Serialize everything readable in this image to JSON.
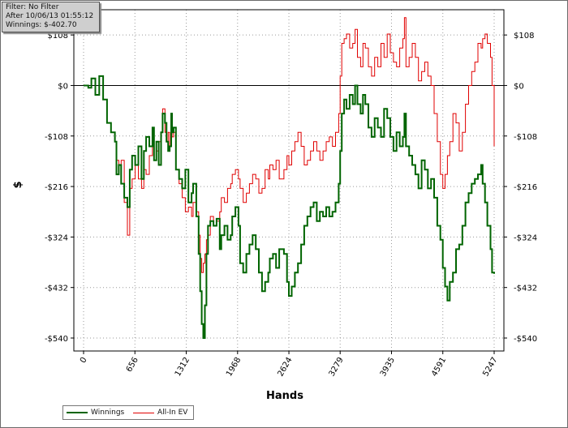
{
  "info": {
    "filter": "Filter: No Filter",
    "after": "After 10/06/13 01:55:12",
    "winnings": "Winnings: $-402.70"
  },
  "colors": {
    "winnings": "#006400",
    "all_in_ev": "#e00000",
    "grid": "#9a9a9a",
    "axis": "#000000"
  },
  "chart_data": {
    "type": "line",
    "title": "",
    "xlabel": "Hands",
    "ylabel": "$",
    "xlim": [
      0,
      5247
    ],
    "ylim": [
      -540,
      162
    ],
    "x_ticks": [
      0,
      656,
      1312,
      1968,
      2624,
      3279,
      3935,
      4591,
      5247
    ],
    "x_tick_labels": [
      "0",
      "656",
      "1312",
      "1968",
      "2624",
      "3279",
      "3935",
      "4591",
      "5247"
    ],
    "y_ticks": [
      108,
      0,
      -108,
      -216,
      -324,
      -432,
      -540
    ],
    "y_tick_labels": [
      "$108",
      "$0",
      "-$108",
      "-$216",
      "-$324",
      "-$432",
      "-$540"
    ],
    "grid": true,
    "legend_position": "bottom-left",
    "zero_line": true,
    "series": [
      {
        "name": "Winnings",
        "color": "#006400",
        "points": [
          [
            0,
            0
          ],
          [
            60,
            -5
          ],
          [
            100,
            15
          ],
          [
            150,
            -20
          ],
          [
            200,
            20
          ],
          [
            250,
            -30
          ],
          [
            300,
            -80
          ],
          [
            350,
            -100
          ],
          [
            400,
            -120
          ],
          [
            420,
            -190
          ],
          [
            450,
            -170
          ],
          [
            480,
            -210
          ],
          [
            520,
            -240
          ],
          [
            560,
            -260
          ],
          [
            590,
            -180
          ],
          [
            620,
            -150
          ],
          [
            660,
            -170
          ],
          [
            700,
            -130
          ],
          [
            740,
            -200
          ],
          [
            770,
            -140
          ],
          [
            800,
            -110
          ],
          [
            840,
            -130
          ],
          [
            880,
            -90
          ],
          [
            900,
            -160
          ],
          [
            930,
            -120
          ],
          [
            960,
            -170
          ],
          [
            990,
            -100
          ],
          [
            1010,
            -60
          ],
          [
            1040,
            -80
          ],
          [
            1060,
            -120
          ],
          [
            1080,
            -140
          ],
          [
            1100,
            -130
          ],
          [
            1120,
            -60
          ],
          [
            1130,
            -100
          ],
          [
            1150,
            -90
          ],
          [
            1180,
            -180
          ],
          [
            1220,
            -200
          ],
          [
            1260,
            -220
          ],
          [
            1300,
            -180
          ],
          [
            1340,
            -250
          ],
          [
            1380,
            -230
          ],
          [
            1400,
            -210
          ],
          [
            1440,
            -280
          ],
          [
            1470,
            -360
          ],
          [
            1490,
            -440
          ],
          [
            1510,
            -510
          ],
          [
            1530,
            -540
          ],
          [
            1550,
            -470
          ],
          [
            1570,
            -360
          ],
          [
            1590,
            -300
          ],
          [
            1620,
            -290
          ],
          [
            1660,
            -300
          ],
          [
            1700,
            -285
          ],
          [
            1740,
            -350
          ],
          [
            1760,
            -320
          ],
          [
            1800,
            -300
          ],
          [
            1840,
            -330
          ],
          [
            1880,
            -320
          ],
          [
            1900,
            -280
          ],
          [
            1940,
            -260
          ],
          [
            1980,
            -300
          ],
          [
            2000,
            -380
          ],
          [
            2040,
            -400
          ],
          [
            2080,
            -360
          ],
          [
            2120,
            -340
          ],
          [
            2160,
            -320
          ],
          [
            2200,
            -350
          ],
          [
            2240,
            -400
          ],
          [
            2280,
            -440
          ],
          [
            2320,
            -420
          ],
          [
            2360,
            -400
          ],
          [
            2380,
            -370
          ],
          [
            2420,
            -360
          ],
          [
            2460,
            -390
          ],
          [
            2500,
            -350
          ],
          [
            2560,
            -360
          ],
          [
            2600,
            -420
          ],
          [
            2624,
            -450
          ],
          [
            2660,
            -430
          ],
          [
            2700,
            -400
          ],
          [
            2740,
            -380
          ],
          [
            2780,
            -340
          ],
          [
            2820,
            -300
          ],
          [
            2860,
            -280
          ],
          [
            2900,
            -260
          ],
          [
            2940,
            -250
          ],
          [
            2980,
            -290
          ],
          [
            3020,
            -270
          ],
          [
            3060,
            -280
          ],
          [
            3100,
            -260
          ],
          [
            3140,
            -280
          ],
          [
            3180,
            -270
          ],
          [
            3220,
            -250
          ],
          [
            3260,
            -210
          ],
          [
            3279,
            -140
          ],
          [
            3300,
            -60
          ],
          [
            3330,
            -30
          ],
          [
            3360,
            -50
          ],
          [
            3400,
            -20
          ],
          [
            3440,
            -40
          ],
          [
            3470,
            0
          ],
          [
            3500,
            -40
          ],
          [
            3540,
            -60
          ],
          [
            3570,
            -20
          ],
          [
            3600,
            -40
          ],
          [
            3640,
            -90
          ],
          [
            3680,
            -110
          ],
          [
            3720,
            -70
          ],
          [
            3760,
            -90
          ],
          [
            3800,
            -110
          ],
          [
            3840,
            -50
          ],
          [
            3880,
            -70
          ],
          [
            3920,
            -110
          ],
          [
            3960,
            -140
          ],
          [
            4000,
            -100
          ],
          [
            4040,
            -130
          ],
          [
            4080,
            -110
          ],
          [
            4100,
            -60
          ],
          [
            4120,
            -130
          ],
          [
            4160,
            -150
          ],
          [
            4200,
            -170
          ],
          [
            4240,
            -190
          ],
          [
            4280,
            -220
          ],
          [
            4320,
            -160
          ],
          [
            4360,
            -180
          ],
          [
            4400,
            -220
          ],
          [
            4440,
            -200
          ],
          [
            4480,
            -240
          ],
          [
            4520,
            -300
          ],
          [
            4560,
            -330
          ],
          [
            4591,
            -390
          ],
          [
            4620,
            -430
          ],
          [
            4650,
            -460
          ],
          [
            4680,
            -420
          ],
          [
            4720,
            -400
          ],
          [
            4760,
            -350
          ],
          [
            4800,
            -340
          ],
          [
            4840,
            -300
          ],
          [
            4880,
            -250
          ],
          [
            4920,
            -230
          ],
          [
            4960,
            -210
          ],
          [
            5000,
            -200
          ],
          [
            5040,
            -190
          ],
          [
            5080,
            -170
          ],
          [
            5100,
            -210
          ],
          [
            5130,
            -250
          ],
          [
            5160,
            -300
          ],
          [
            5200,
            -350
          ],
          [
            5220,
            -400
          ],
          [
            5247,
            -402.7
          ]
        ]
      },
      {
        "name": "All-In EV",
        "color": "#e00000",
        "points": [
          [
            0,
            0
          ],
          [
            60,
            -5
          ],
          [
            100,
            15
          ],
          [
            150,
            -20
          ],
          [
            200,
            20
          ],
          [
            250,
            -30
          ],
          [
            300,
            -80
          ],
          [
            350,
            -100
          ],
          [
            400,
            -120
          ],
          [
            420,
            -160
          ],
          [
            450,
            -170
          ],
          [
            480,
            -160
          ],
          [
            520,
            -250
          ],
          [
            560,
            -320
          ],
          [
            590,
            -220
          ],
          [
            620,
            -200
          ],
          [
            660,
            -170
          ],
          [
            700,
            -200
          ],
          [
            740,
            -220
          ],
          [
            770,
            -180
          ],
          [
            800,
            -190
          ],
          [
            840,
            -150
          ],
          [
            880,
            -110
          ],
          [
            900,
            -160
          ],
          [
            930,
            -140
          ],
          [
            960,
            -120
          ],
          [
            990,
            -100
          ],
          [
            1010,
            -50
          ],
          [
            1040,
            -100
          ],
          [
            1060,
            -120
          ],
          [
            1080,
            -100
          ],
          [
            1100,
            -130
          ],
          [
            1120,
            -80
          ],
          [
            1130,
            -110
          ],
          [
            1150,
            -100
          ],
          [
            1180,
            -180
          ],
          [
            1220,
            -210
          ],
          [
            1260,
            -240
          ],
          [
            1300,
            -270
          ],
          [
            1340,
            -260
          ],
          [
            1380,
            -280
          ],
          [
            1400,
            -250
          ],
          [
            1440,
            -270
          ],
          [
            1470,
            -320
          ],
          [
            1490,
            -370
          ],
          [
            1510,
            -400
          ],
          [
            1530,
            -380
          ],
          [
            1550,
            -360
          ],
          [
            1570,
            -330
          ],
          [
            1590,
            -320
          ],
          [
            1620,
            -280
          ],
          [
            1660,
            -300
          ],
          [
            1700,
            -290
          ],
          [
            1740,
            -270
          ],
          [
            1760,
            -240
          ],
          [
            1800,
            -250
          ],
          [
            1840,
            -220
          ],
          [
            1880,
            -210
          ],
          [
            1900,
            -190
          ],
          [
            1940,
            -180
          ],
          [
            1980,
            -200
          ],
          [
            2000,
            -220
          ],
          [
            2040,
            -250
          ],
          [
            2080,
            -230
          ],
          [
            2120,
            -210
          ],
          [
            2160,
            -190
          ],
          [
            2200,
            -200
          ],
          [
            2240,
            -230
          ],
          [
            2280,
            -220
          ],
          [
            2320,
            -180
          ],
          [
            2360,
            -200
          ],
          [
            2380,
            -170
          ],
          [
            2420,
            -180
          ],
          [
            2460,
            -160
          ],
          [
            2500,
            -200
          ],
          [
            2560,
            -180
          ],
          [
            2600,
            -150
          ],
          [
            2624,
            -170
          ],
          [
            2660,
            -140
          ],
          [
            2700,
            -120
          ],
          [
            2740,
            -100
          ],
          [
            2780,
            -130
          ],
          [
            2820,
            -170
          ],
          [
            2860,
            -160
          ],
          [
            2900,
            -140
          ],
          [
            2940,
            -120
          ],
          [
            2980,
            -140
          ],
          [
            3020,
            -160
          ],
          [
            3060,
            -140
          ],
          [
            3100,
            -120
          ],
          [
            3140,
            -110
          ],
          [
            3180,
            -130
          ],
          [
            3220,
            -100
          ],
          [
            3260,
            -60
          ],
          [
            3279,
            20
          ],
          [
            3300,
            90
          ],
          [
            3330,
            100
          ],
          [
            3360,
            110
          ],
          [
            3400,
            80
          ],
          [
            3440,
            90
          ],
          [
            3470,
            120
          ],
          [
            3500,
            60
          ],
          [
            3540,
            40
          ],
          [
            3570,
            90
          ],
          [
            3600,
            80
          ],
          [
            3640,
            40
          ],
          [
            3680,
            20
          ],
          [
            3720,
            60
          ],
          [
            3760,
            40
          ],
          [
            3800,
            90
          ],
          [
            3840,
            60
          ],
          [
            3880,
            110
          ],
          [
            3920,
            70
          ],
          [
            3960,
            50
          ],
          [
            4000,
            40
          ],
          [
            4040,
            80
          ],
          [
            4080,
            100
          ],
          [
            4100,
            145
          ],
          [
            4120,
            40
          ],
          [
            4160,
            60
          ],
          [
            4200,
            90
          ],
          [
            4240,
            60
          ],
          [
            4280,
            10
          ],
          [
            4320,
            30
          ],
          [
            4360,
            50
          ],
          [
            4400,
            20
          ],
          [
            4440,
            0
          ],
          [
            4480,
            -60
          ],
          [
            4520,
            -120
          ],
          [
            4560,
            -190
          ],
          [
            4591,
            -220
          ],
          [
            4620,
            -190
          ],
          [
            4650,
            -150
          ],
          [
            4680,
            -120
          ],
          [
            4720,
            -60
          ],
          [
            4760,
            -80
          ],
          [
            4800,
            -140
          ],
          [
            4840,
            -100
          ],
          [
            4880,
            -40
          ],
          [
            4920,
            0
          ],
          [
            4960,
            30
          ],
          [
            5000,
            50
          ],
          [
            5040,
            90
          ],
          [
            5080,
            80
          ],
          [
            5100,
            100
          ],
          [
            5130,
            110
          ],
          [
            5160,
            90
          ],
          [
            5200,
            60
          ],
          [
            5220,
            0
          ],
          [
            5247,
            -130
          ]
        ]
      }
    ]
  }
}
